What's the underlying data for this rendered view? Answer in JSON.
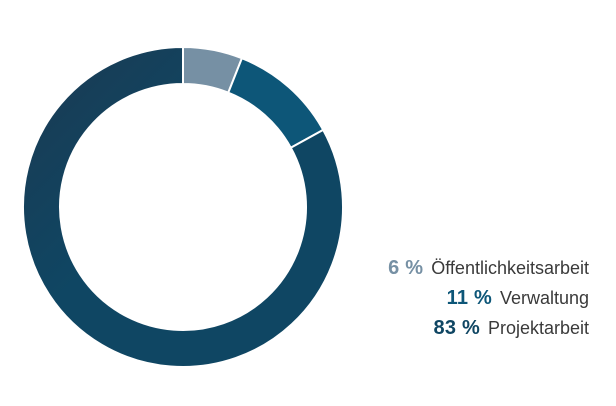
{
  "chart_data": {
    "type": "pie",
    "style": "donut",
    "slices": [
      {
        "label": "Öffentlichkeitsarbeit",
        "value": 6,
        "value_label": "6 %",
        "color": "#7690a4"
      },
      {
        "label": "Verwaltung",
        "value": 11,
        "value_label": "11 %",
        "color": "#0d5678"
      },
      {
        "label": "Projektarbeit",
        "value": 83,
        "value_label": "83 %",
        "color": "#0f4663"
      }
    ],
    "title": "",
    "legend_position": "bottom-right"
  }
}
